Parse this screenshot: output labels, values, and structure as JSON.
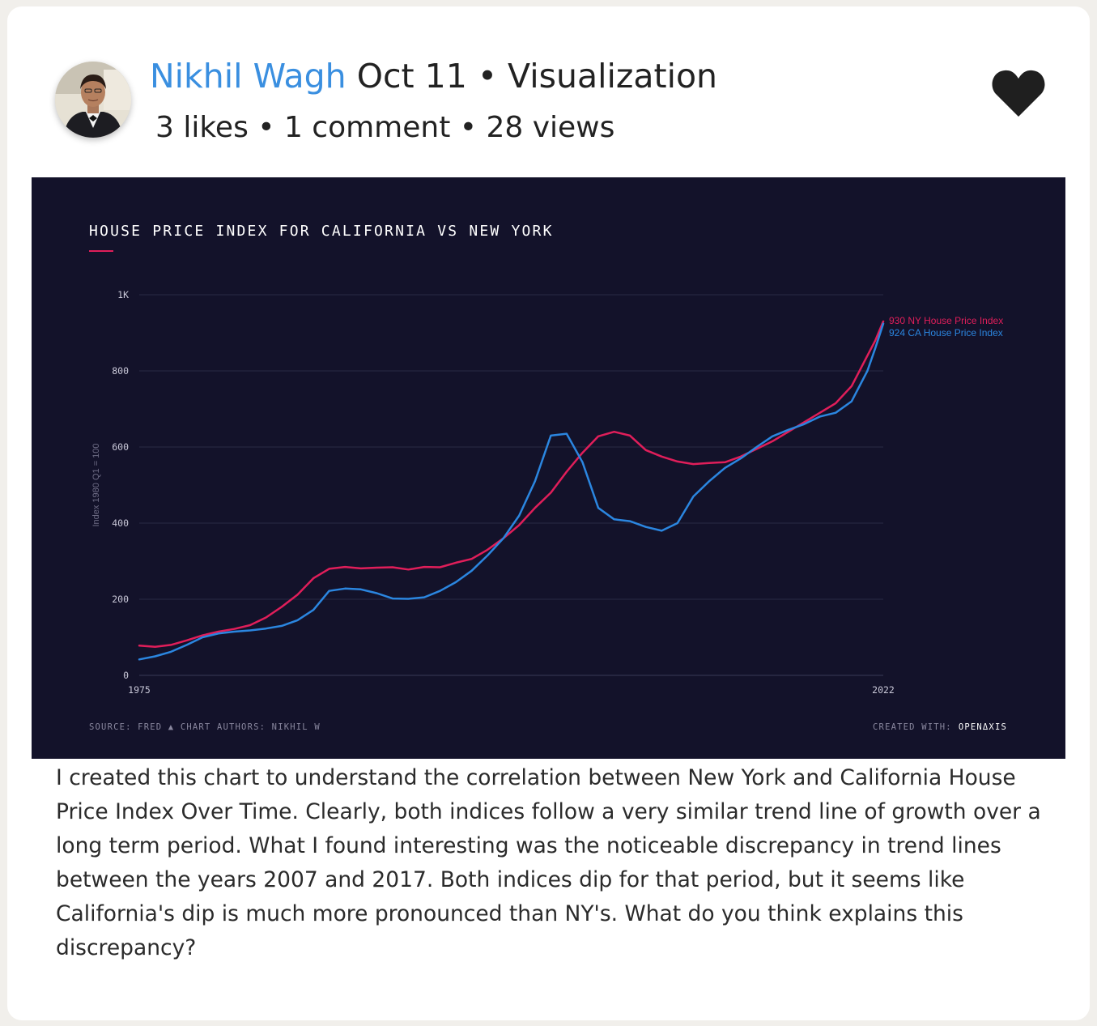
{
  "post": {
    "author": "Nikhil Wagh",
    "date_category": "Oct 11 • Visualization",
    "stats": "3 likes • 1 comment • 28 views",
    "body": "I created this chart to understand the correlation between New York and California House Price Index Over Time. Clearly, both indices follow a very similar trend line of growth over a long term period. What I found interesting was the noticeable discrepancy in trend lines between the years 2007 and 2017. Both indices dip for that period, but it seems like California's dip is much more pronounced than NY's. What do you think explains this discrepancy?"
  },
  "colors": {
    "author": "#3a8fe0",
    "chart_bg": "#13122a",
    "ny": "#e01e5a",
    "ca": "#2b86e0"
  },
  "chart_data": {
    "type": "line",
    "title": "HOUSE PRICE INDEX FOR CALIFORNIA VS NEW YORK",
    "ylabel": "Index 1980 Q1 = 100",
    "xlim": [
      1975,
      2022
    ],
    "ylim": [
      0,
      1000
    ],
    "x_ticks": [
      "1975",
      "2022"
    ],
    "y_ticks": [
      "0",
      "200",
      "400",
      "600",
      "800",
      "1K"
    ],
    "y_tick_values": [
      0,
      200,
      400,
      600,
      800,
      1000
    ],
    "grid": true,
    "end_labels": [
      "930 NY House Price Index",
      "924 CA House Price Index"
    ],
    "source": "SOURCE: FRED",
    "authors": "CHART AUTHORS: NIKHIL W",
    "created_with_label": "CREATED WITH:",
    "created_with_brand": "OPENΔXIS",
    "series": [
      {
        "name": "NY House Price Index",
        "color": "#e01e5a",
        "x": [
          1975,
          1976,
          1977,
          1978,
          1979,
          1980,
          1981,
          1982,
          1983,
          1984,
          1985,
          1986,
          1987,
          1988,
          1989,
          1990,
          1991,
          1992,
          1993,
          1994,
          1995,
          1996,
          1997,
          1998,
          1999,
          2000,
          2001,
          2002,
          2003,
          2004,
          2005,
          2006,
          2007,
          2008,
          2009,
          2010,
          2011,
          2012,
          2013,
          2014,
          2015,
          2016,
          2017,
          2018,
          2019,
          2020,
          2021,
          2021.5,
          2022
        ],
        "values": [
          78,
          75,
          80,
          92,
          105,
          115,
          122,
          132,
          152,
          180,
          212,
          255,
          280,
          285,
          281,
          283,
          284,
          278,
          285,
          284,
          296,
          306,
          330,
          360,
          395,
          440,
          480,
          535,
          585,
          628,
          640,
          630,
          592,
          575,
          562,
          555,
          558,
          560,
          575,
          595,
          615,
          640,
          665,
          690,
          715,
          760,
          840,
          880,
          930
        ]
      },
      {
        "name": "CA House Price Index",
        "color": "#2b86e0",
        "x": [
          1975,
          1976,
          1977,
          1978,
          1979,
          1980,
          1981,
          1982,
          1983,
          1984,
          1985,
          1986,
          1987,
          1988,
          1989,
          1990,
          1991,
          1992,
          1993,
          1994,
          1995,
          1996,
          1997,
          1998,
          1999,
          2000,
          2001,
          2002,
          2003,
          2004,
          2005,
          2006,
          2007,
          2008,
          2009,
          2010,
          2011,
          2012,
          2013,
          2014,
          2015,
          2016,
          2017,
          2018,
          2019,
          2020,
          2021,
          2021.5,
          2022
        ],
        "values": [
          42,
          50,
          62,
          80,
          100,
          110,
          115,
          118,
          123,
          130,
          145,
          172,
          222,
          228,
          226,
          216,
          202,
          201,
          205,
          222,
          245,
          275,
          315,
          360,
          420,
          510,
          630,
          635,
          560,
          440,
          410,
          405,
          390,
          380,
          400,
          470,
          510,
          545,
          570,
          600,
          628,
          645,
          660,
          680,
          690,
          720,
          800,
          860,
          924
        ]
      }
    ]
  }
}
